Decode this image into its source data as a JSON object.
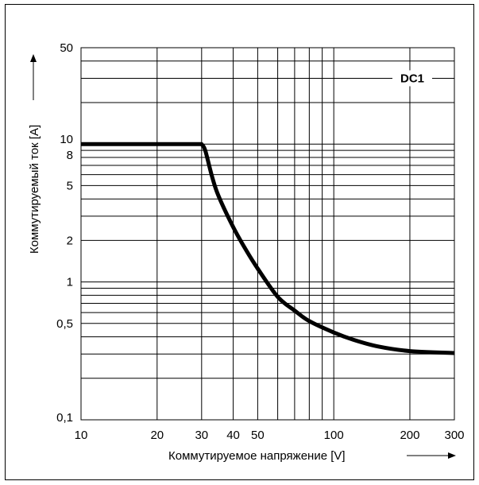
{
  "chart_data": {
    "type": "line",
    "xscale": "log",
    "yscale": "log",
    "xlim": [
      10,
      300
    ],
    "ylim": [
      0.1,
      50
    ],
    "xticks": [
      10,
      20,
      30,
      40,
      50,
      100,
      200,
      300
    ],
    "xtick_labels": [
      "10",
      "20",
      "30",
      "40",
      "50",
      "100",
      "200",
      "300"
    ],
    "yticks": [
      0.1,
      0.5,
      1,
      2,
      5,
      8,
      10,
      50
    ],
    "ytick_labels": [
      "0,1",
      "0,5",
      "1",
      "2",
      "5",
      "8",
      "10",
      "50"
    ],
    "x_gridlines": [
      10,
      20,
      30,
      40,
      50,
      60,
      70,
      80,
      90,
      100,
      200,
      300
    ],
    "y_gridlines": [
      0.1,
      0.2,
      0.3,
      0.4,
      0.5,
      0.6,
      0.7,
      0.8,
      0.9,
      1,
      2,
      3,
      4,
      5,
      6,
      7,
      8,
      9,
      10,
      20,
      30,
      40,
      50
    ],
    "grid": true,
    "xlabel": "Коммутируемое напряжение [V]",
    "ylabel": "Коммутируемый ток [A]",
    "series": [
      {
        "name": "DC1",
        "x": [
          10,
          30,
          31,
          33,
          35,
          40,
          45,
          50,
          60,
          70,
          80,
          100,
          120,
          150,
          200,
          300
        ],
        "y": [
          10,
          10,
          9,
          5.8,
          4.2,
          2.5,
          1.7,
          1.25,
          0.78,
          0.62,
          0.52,
          0.43,
          0.38,
          0.34,
          0.315,
          0.305
        ]
      }
    ],
    "annotation": "DC1"
  }
}
